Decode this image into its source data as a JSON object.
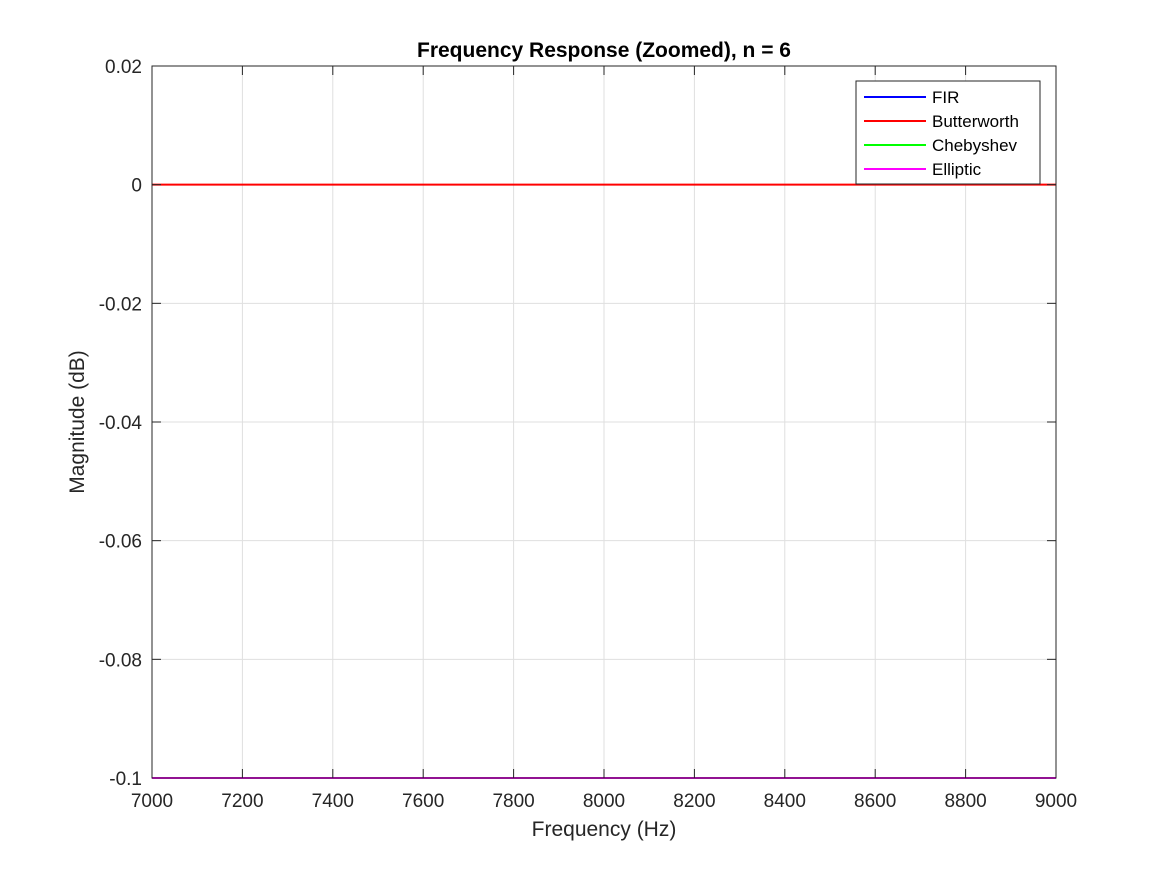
{
  "chart_data": {
    "type": "line",
    "title": "Frequency Response (Zoomed), n = 6",
    "xlabel": "Frequency (Hz)",
    "ylabel": "Magnitude (dB)",
    "xlim": [
      7000,
      9000
    ],
    "ylim": [
      -0.1,
      0.02
    ],
    "xticks": [
      7000,
      7200,
      7400,
      7600,
      7800,
      8000,
      8200,
      8400,
      8600,
      8800,
      9000
    ],
    "yticks": [
      0.02,
      0,
      -0.02,
      -0.04,
      -0.06,
      -0.08,
      -0.1
    ],
    "xtick_labels": [
      "7000",
      "7200",
      "7400",
      "7600",
      "7800",
      "8000",
      "8200",
      "8400",
      "8600",
      "8800",
      "9000"
    ],
    "ytick_labels": [
      "0.02",
      "0",
      "-0.02",
      "-0.04",
      "-0.06",
      "-0.08",
      "-0.1"
    ],
    "grid": true,
    "legend_position": "top-right",
    "series": [
      {
        "name": "FIR",
        "color": "#0000ff",
        "x": [
          7000,
          9000
        ],
        "y": [
          -0.1,
          -0.1
        ]
      },
      {
        "name": "Butterworth",
        "color": "#ff0000",
        "x": [
          7000,
          9000
        ],
        "y": [
          0,
          0
        ]
      },
      {
        "name": "Chebyshev",
        "color": "#00ff00",
        "x": [
          7000,
          9000
        ],
        "y": [
          -0.1,
          -0.1
        ]
      },
      {
        "name": "Elliptic",
        "color": "#ff00ff",
        "x": [
          7000,
          9000
        ],
        "y": [
          -0.1,
          -0.1
        ]
      }
    ]
  }
}
